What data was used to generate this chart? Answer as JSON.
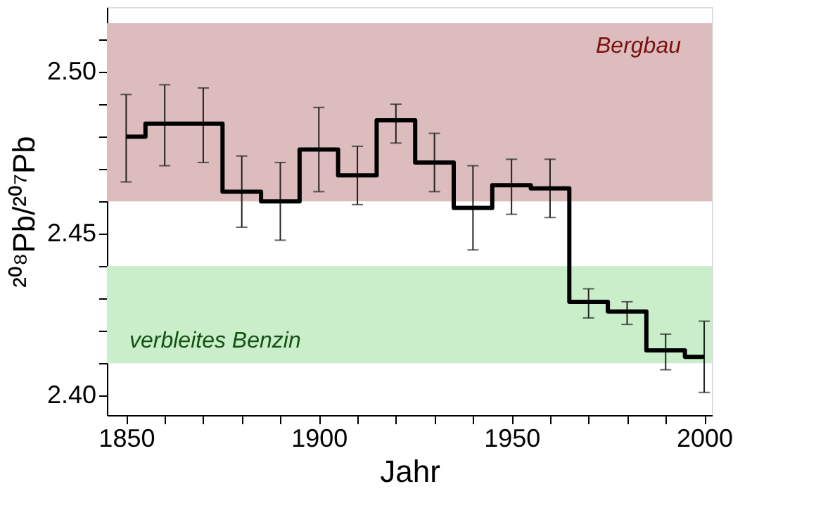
{
  "chart_data": {
    "type": "step",
    "xlabel": "Jahr",
    "ylabel": "²⁰⁸Pb/²⁰⁷Pb",
    "x": [
      1850,
      1860,
      1870,
      1880,
      1890,
      1900,
      1910,
      1920,
      1930,
      1940,
      1950,
      1960,
      1970,
      1980,
      1990,
      2000
    ],
    "series": [
      {
        "color": "#000000",
        "values": [
          2.48,
          2.484,
          2.484,
          2.463,
          2.46,
          2.476,
          2.468,
          2.485,
          2.472,
          2.458,
          2.465,
          2.464,
          2.429,
          2.426,
          2.414,
          2.412
        ],
        "errors": [
          [
            2.466,
            2.493
          ],
          [
            2.471,
            2.496
          ],
          [
            2.472,
            2.495
          ],
          [
            2.452,
            2.474
          ],
          [
            2.448,
            2.472
          ],
          [
            2.463,
            2.489
          ],
          [
            2.459,
            2.477
          ],
          [
            2.478,
            2.49
          ],
          [
            2.463,
            2.481
          ],
          [
            2.445,
            2.471
          ],
          [
            2.456,
            2.473
          ],
          [
            2.455,
            2.473
          ],
          [
            2.424,
            2.433
          ],
          [
            2.422,
            2.429
          ],
          [
            2.408,
            2.419
          ],
          [
            2.401,
            2.423
          ]
        ]
      }
    ],
    "xlim": [
      1845,
      2002
    ],
    "xticks": [
      1850,
      {
        "value": 1860,
        "label": null
      },
      {
        "value": 1870,
        "label": null
      },
      {
        "value": 1880,
        "label": null
      },
      {
        "value": 1890,
        "label": null
      },
      1900,
      {
        "value": 1910,
        "label": null
      },
      {
        "value": 1920,
        "label": null
      },
      {
        "value": 1930,
        "label": null
      },
      {
        "value": 1940,
        "label": null
      },
      1950,
      {
        "value": 1960,
        "label": null
      },
      {
        "value": 1970,
        "label": null
      },
      {
        "value": 1980,
        "label": null
      },
      {
        "value": 1990,
        "label": null
      },
      2000
    ],
    "ylim": [
      2.394,
      2.52
    ],
    "yticks": [
      {
        "value": 2.4,
        "label": "2.40"
      },
      {
        "value": 2.41,
        "label": null
      },
      {
        "value": 2.42,
        "label": null
      },
      {
        "value": 2.43,
        "label": null
      },
      {
        "value": 2.44,
        "label": null
      },
      {
        "value": 2.45,
        "label": "2.45"
      },
      {
        "value": 2.46,
        "label": null
      },
      {
        "value": 2.47,
        "label": null
      },
      {
        "value": 2.48,
        "label": null
      },
      {
        "value": 2.49,
        "label": null
      },
      {
        "value": 2.5,
        "label": "2.50"
      },
      {
        "value": 2.51,
        "label": null
      }
    ],
    "bands": [
      {
        "axis": "y",
        "from": 2.46,
        "to": 2.515,
        "label": "Bergbau",
        "color": "#dcbcbc"
      },
      {
        "axis": "y",
        "from": 2.41,
        "to": 2.44,
        "label": "verbleites Benzin",
        "color": "#c9eec9"
      }
    ],
    "grid": false,
    "marker": "none",
    "line_style": "solid"
  }
}
